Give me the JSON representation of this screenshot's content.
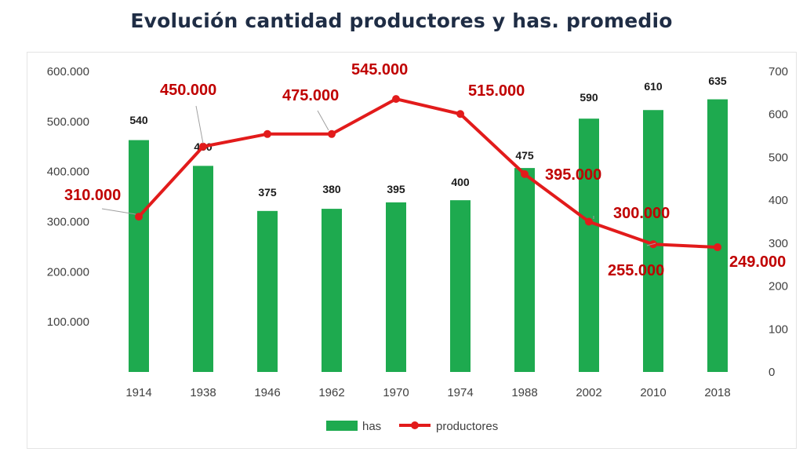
{
  "chart_data": {
    "type": "bar",
    "title": "Evolución cantidad productores y has. promedio",
    "categories": [
      "1914",
      "1938",
      "1946",
      "1962",
      "1970",
      "1974",
      "1988",
      "2002",
      "2010",
      "2018"
    ],
    "series": [
      {
        "name": "has",
        "type": "bar",
        "axis": "right",
        "color": "#1eaa4f",
        "values": [
          540,
          480,
          375,
          380,
          395,
          400,
          475,
          590,
          610,
          635
        ],
        "labels": [
          "540",
          "480",
          "375",
          "380",
          "395",
          "400",
          "475",
          "590",
          "610",
          "635"
        ]
      },
      {
        "name": "productores",
        "type": "line",
        "axis": "left",
        "color": "#e21b1b",
        "values": [
          310000,
          450000,
          475000,
          475000,
          545000,
          515000,
          395000,
          300000,
          255000,
          249000
        ],
        "labels": [
          "310.000",
          "450.000",
          "475.000",
          "",
          "545.000",
          "515.000",
          "395.000",
          "300.000",
          "255.000",
          "249.000"
        ]
      }
    ],
    "y_left": {
      "ylim": [
        0,
        600000
      ],
      "ticks": [
        "",
        "100.000",
        "200.000",
        "300.000",
        "400.000",
        "500.000",
        "600.000"
      ]
    },
    "y_right": {
      "ylim": [
        0,
        700
      ],
      "ticks": [
        "0",
        "100",
        "200",
        "300",
        "400",
        "500",
        "600",
        "700"
      ]
    },
    "grid": false,
    "legend_position": "bottom",
    "legend": [
      "has",
      "productores"
    ]
  }
}
